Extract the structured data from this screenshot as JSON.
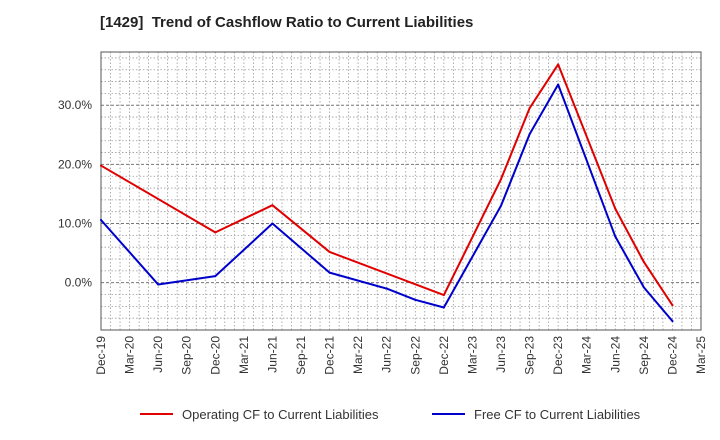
{
  "chart_data": {
    "type": "line",
    "title": "[1429]  Trend of Cashflow Ratio to Current Liabilities",
    "xlabel": "",
    "ylabel": "",
    "x_tick_labels": [
      "Dec-19",
      "Mar-20",
      "Jun-20",
      "Sep-20",
      "Dec-20",
      "Mar-21",
      "Jun-21",
      "Sep-21",
      "Dec-21",
      "Mar-22",
      "Jun-22",
      "Sep-22",
      "Dec-22",
      "Mar-23",
      "Jun-23",
      "Sep-23",
      "Dec-23",
      "Mar-24",
      "Jun-24",
      "Sep-24",
      "Dec-24",
      "Mar-25"
    ],
    "y_ticks": [
      0,
      10,
      20,
      30
    ],
    "y_tick_labels": [
      "0.0%",
      "10.0%",
      "20.0%",
      "30.0%"
    ],
    "ylim": [
      -8,
      39
    ],
    "grid": true,
    "legend_position": "bottom",
    "series": [
      {
        "name": "Operating CF to Current Liabilities",
        "color": "#e00000",
        "x": [
          "Dec-19",
          "Dec-20",
          "Jun-21",
          "Dec-21",
          "Dec-22",
          "Jun-23",
          "Sep-23",
          "Dec-23",
          "Jun-24",
          "Sep-24",
          "Dec-24"
        ],
        "values": [
          19.8,
          8.5,
          13.1,
          5.2,
          -2.1,
          17.5,
          29.5,
          36.9,
          12.5,
          3.5,
          -3.8
        ]
      },
      {
        "name": "Free CF to Current Liabilities",
        "color": "#0000cc",
        "x": [
          "Dec-19",
          "Jun-20",
          "Dec-20",
          "Jun-21",
          "Dec-21",
          "Jun-22",
          "Sep-22",
          "Dec-22",
          "Jun-23",
          "Sep-23",
          "Dec-23",
          "Jun-24",
          "Sep-24",
          "Dec-24"
        ],
        "values": [
          10.6,
          -0.3,
          1.1,
          10.0,
          1.7,
          -1.0,
          -2.9,
          -4.2,
          13.0,
          25.1,
          33.5,
          7.8,
          -0.8,
          -6.5
        ]
      }
    ]
  }
}
